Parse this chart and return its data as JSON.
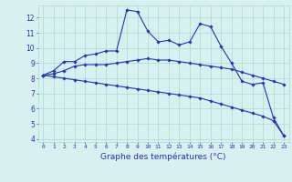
{
  "hours": [
    0,
    1,
    2,
    3,
    4,
    5,
    6,
    7,
    8,
    9,
    10,
    11,
    12,
    13,
    14,
    15,
    16,
    17,
    18,
    19,
    20,
    21,
    22,
    23
  ],
  "temp_line1": [
    8.2,
    8.5,
    9.1,
    9.1,
    9.5,
    9.6,
    9.8,
    9.8,
    12.5,
    12.4,
    11.1,
    10.4,
    10.5,
    10.2,
    10.4,
    11.6,
    11.4,
    10.1,
    9.0,
    7.8,
    7.6,
    7.7,
    5.4,
    4.2
  ],
  "temp_line2": [
    8.2,
    8.3,
    8.5,
    8.8,
    8.9,
    8.9,
    8.9,
    9.0,
    9.1,
    9.2,
    9.3,
    9.2,
    9.2,
    9.1,
    9.0,
    8.9,
    8.8,
    8.7,
    8.6,
    8.4,
    8.2,
    8.0,
    7.8,
    7.6
  ],
  "temp_line3": [
    8.2,
    8.1,
    8.0,
    7.9,
    7.8,
    7.7,
    7.6,
    7.5,
    7.4,
    7.3,
    7.2,
    7.1,
    7.0,
    6.9,
    6.8,
    6.7,
    6.5,
    6.3,
    6.1,
    5.9,
    5.7,
    5.5,
    5.2,
    4.2
  ],
  "line_color": "#2233bb",
  "bg_color": "#d8f0f0",
  "grid_color": "#aaddcc",
  "xlabel": "Graphe des températures (°C)",
  "xlim": [
    -0.5,
    23.5
  ],
  "ylim": [
    3.8,
    12.8
  ],
  "yticks": [
    4,
    5,
    6,
    7,
    8,
    9,
    10,
    11,
    12
  ],
  "label_fontsize": 6.5
}
